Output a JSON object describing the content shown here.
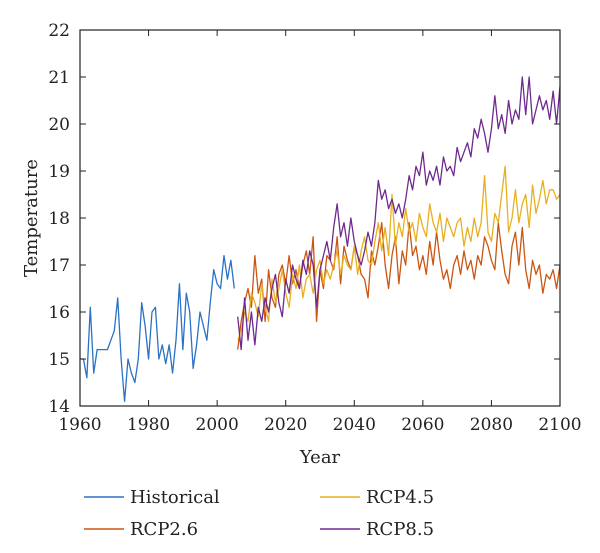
{
  "chart_data": {
    "type": "line",
    "title": "",
    "xlabel": "Year",
    "ylabel": "Temperature",
    "xlim": [
      1960,
      2100
    ],
    "ylim": [
      14,
      22
    ],
    "xticks": [
      1960,
      1980,
      2000,
      2020,
      2040,
      2060,
      2080,
      2100
    ],
    "yticks": [
      14,
      15,
      16,
      17,
      18,
      19,
      20,
      21,
      22
    ],
    "grid": false,
    "legend_position": "bottom",
    "series": [
      {
        "name": "Historical",
        "color": "#2a72c6",
        "x": [
          1960,
          1961,
          1962,
          1963,
          1964,
          1965,
          1966,
          1967,
          1968,
          1969,
          1970,
          1971,
          1972,
          1973,
          1974,
          1975,
          1976,
          1977,
          1978,
          1979,
          1980,
          1981,
          1982,
          1983,
          1984,
          1985,
          1986,
          1987,
          1988,
          1989,
          1990,
          1991,
          1992,
          1993,
          1994,
          1995,
          1996,
          1997,
          1998,
          1999,
          2000,
          2001,
          2002,
          2003,
          2004,
          2005
        ],
        "y": [
          15.0,
          15.0,
          14.6,
          16.1,
          14.7,
          15.2,
          15.2,
          15.2,
          15.2,
          15.4,
          15.6,
          16.3,
          15.0,
          14.1,
          15.0,
          14.7,
          14.5,
          15.0,
          16.2,
          15.7,
          15.0,
          16.0,
          16.1,
          15.0,
          15.3,
          14.9,
          15.3,
          14.7,
          15.4,
          16.6,
          15.2,
          16.4,
          16.0,
          14.8,
          15.3,
          16.0,
          15.7,
          15.4,
          16.2,
          16.9,
          16.6,
          16.5,
          17.2,
          16.7,
          17.1,
          16.5
        ]
      },
      {
        "name": "RCP2.6",
        "color": "#cc5511",
        "x": [
          2006,
          2007,
          2008,
          2009,
          2010,
          2011,
          2012,
          2013,
          2014,
          2015,
          2016,
          2017,
          2018,
          2019,
          2020,
          2021,
          2022,
          2023,
          2024,
          2025,
          2026,
          2027,
          2028,
          2029,
          2030,
          2031,
          2032,
          2033,
          2034,
          2035,
          2036,
          2037,
          2038,
          2039,
          2040,
          2041,
          2042,
          2043,
          2044,
          2045,
          2046,
          2047,
          2048,
          2049,
          2050,
          2051,
          2052,
          2053,
          2054,
          2055,
          2056,
          2057,
          2058,
          2059,
          2060,
          2061,
          2062,
          2063,
          2064,
          2065,
          2066,
          2067,
          2068,
          2069,
          2070,
          2071,
          2072,
          2073,
          2074,
          2075,
          2076,
          2077,
          2078,
          2079,
          2080,
          2081,
          2082,
          2083,
          2084,
          2085,
          2086,
          2087,
          2088,
          2089,
          2090,
          2091,
          2092,
          2093,
          2094,
          2095,
          2096,
          2097,
          2098,
          2099,
          2100
        ],
        "y": [
          15.2,
          15.8,
          16.2,
          16.5,
          16.1,
          17.2,
          16.4,
          16.7,
          15.8,
          16.9,
          16.3,
          16.1,
          16.8,
          17.0,
          16.6,
          17.2,
          16.6,
          16.9,
          16.5,
          17.0,
          17.3,
          16.8,
          17.6,
          15.8,
          16.9,
          16.5,
          17.2,
          17.1,
          16.9,
          17.6,
          16.6,
          17.4,
          17.1,
          16.9,
          17.4,
          17.2,
          16.8,
          16.7,
          16.3,
          17.3,
          17.0,
          17.4,
          17.9,
          17.0,
          16.5,
          17.2,
          17.6,
          16.6,
          17.3,
          17.0,
          17.9,
          17.2,
          17.4,
          16.9,
          17.2,
          16.8,
          17.5,
          17.0,
          17.7,
          17.1,
          16.7,
          16.9,
          16.5,
          17.0,
          17.2,
          16.8,
          17.3,
          16.9,
          17.1,
          16.7,
          17.2,
          17.0,
          17.6,
          17.4,
          17.1,
          16.9,
          17.9,
          17.3,
          16.8,
          16.6,
          17.4,
          17.7,
          17.0,
          17.8,
          16.9,
          16.5,
          17.1,
          16.8,
          17.0,
          16.4,
          16.8,
          16.7,
          16.9,
          16.5,
          17.0
        ]
      },
      {
        "name": "RCP4.5",
        "color": "#e8b020",
        "x": [
          2006,
          2007,
          2008,
          2009,
          2010,
          2011,
          2012,
          2013,
          2014,
          2015,
          2016,
          2017,
          2018,
          2019,
          2020,
          2021,
          2022,
          2023,
          2024,
          2025,
          2026,
          2027,
          2028,
          2029,
          2030,
          2031,
          2032,
          2033,
          2034,
          2035,
          2036,
          2037,
          2038,
          2039,
          2040,
          2041,
          2042,
          2043,
          2044,
          2045,
          2046,
          2047,
          2048,
          2049,
          2050,
          2051,
          2052,
          2053,
          2054,
          2055,
          2056,
          2057,
          2058,
          2059,
          2060,
          2061,
          2062,
          2063,
          2064,
          2065,
          2066,
          2067,
          2068,
          2069,
          2070,
          2071,
          2072,
          2073,
          2074,
          2075,
          2076,
          2077,
          2078,
          2079,
          2080,
          2081,
          2082,
          2083,
          2084,
          2085,
          2086,
          2087,
          2088,
          2089,
          2090,
          2091,
          2092,
          2093,
          2094,
          2095,
          2096,
          2097,
          2098,
          2099,
          2100
        ],
        "y": [
          15.4,
          15.6,
          16.0,
          15.8,
          16.4,
          16.2,
          15.9,
          16.6,
          16.1,
          15.8,
          16.7,
          16.2,
          16.5,
          16.9,
          16.4,
          16.1,
          16.8,
          16.5,
          17.0,
          16.3,
          16.7,
          16.8,
          16.4,
          16.9,
          17.1,
          16.6,
          16.9,
          16.7,
          17.0,
          17.3,
          16.8,
          17.2,
          17.0,
          16.9,
          17.4,
          16.8,
          17.3,
          17.6,
          17.1,
          17.0,
          17.5,
          17.9,
          17.3,
          17.8,
          17.2,
          18.5,
          17.4,
          17.9,
          17.6,
          18.2,
          17.7,
          17.9,
          17.5,
          18.1,
          17.8,
          17.6,
          18.3,
          17.9,
          17.7,
          18.1,
          17.5,
          18.0,
          17.8,
          17.6,
          17.9,
          18.0,
          17.4,
          17.8,
          17.5,
          18.0,
          17.6,
          17.9,
          18.9,
          17.7,
          17.5,
          18.1,
          17.9,
          18.5,
          19.1,
          17.7,
          18.0,
          18.6,
          17.9,
          18.3,
          18.5,
          17.8,
          18.7,
          18.1,
          18.4,
          18.8,
          18.3,
          18.6,
          18.6,
          18.4,
          18.5
        ]
      },
      {
        "name": "RCP8.5",
        "color": "#6e2a8e",
        "x": [
          2006,
          2007,
          2008,
          2009,
          2010,
          2011,
          2012,
          2013,
          2014,
          2015,
          2016,
          2017,
          2018,
          2019,
          2020,
          2021,
          2022,
          2023,
          2024,
          2025,
          2026,
          2027,
          2028,
          2029,
          2030,
          2031,
          2032,
          2033,
          2034,
          2035,
          2036,
          2037,
          2038,
          2039,
          2040,
          2041,
          2042,
          2043,
          2044,
          2045,
          2046,
          2047,
          2048,
          2049,
          2050,
          2051,
          2052,
          2053,
          2054,
          2055,
          2056,
          2057,
          2058,
          2059,
          2060,
          2061,
          2062,
          2063,
          2064,
          2065,
          2066,
          2067,
          2068,
          2069,
          2070,
          2071,
          2072,
          2073,
          2074,
          2075,
          2076,
          2077,
          2078,
          2079,
          2080,
          2081,
          2082,
          2083,
          2084,
          2085,
          2086,
          2087,
          2088,
          2089,
          2090,
          2091,
          2092,
          2093,
          2094,
          2095,
          2096,
          2097,
          2098,
          2099,
          2100
        ],
        "y": [
          15.9,
          15.2,
          16.3,
          15.4,
          16.0,
          15.3,
          16.1,
          15.8,
          16.3,
          16.0,
          16.5,
          16.8,
          16.2,
          15.9,
          16.7,
          16.4,
          17.0,
          16.7,
          16.5,
          17.1,
          16.8,
          17.3,
          17.0,
          16.1,
          16.9,
          17.2,
          17.5,
          17.1,
          17.8,
          18.3,
          17.6,
          17.9,
          17.4,
          18.0,
          17.5,
          17.2,
          17.0,
          17.3,
          17.7,
          17.4,
          17.9,
          18.8,
          18.4,
          18.6,
          18.2,
          18.4,
          18.1,
          18.3,
          18.0,
          18.4,
          18.9,
          18.6,
          19.1,
          18.9,
          19.4,
          18.7,
          19.0,
          18.8,
          19.1,
          18.7,
          19.3,
          19.0,
          19.1,
          18.9,
          19.5,
          19.2,
          19.4,
          19.6,
          19.3,
          19.9,
          19.7,
          20.1,
          19.8,
          19.4,
          19.9,
          20.6,
          19.9,
          20.2,
          19.8,
          20.5,
          20.0,
          20.3,
          20.1,
          21.0,
          20.2,
          21.0,
          20.0,
          20.3,
          20.6,
          20.3,
          20.5,
          20.1,
          20.7,
          20.0,
          20.8
        ]
      }
    ]
  }
}
